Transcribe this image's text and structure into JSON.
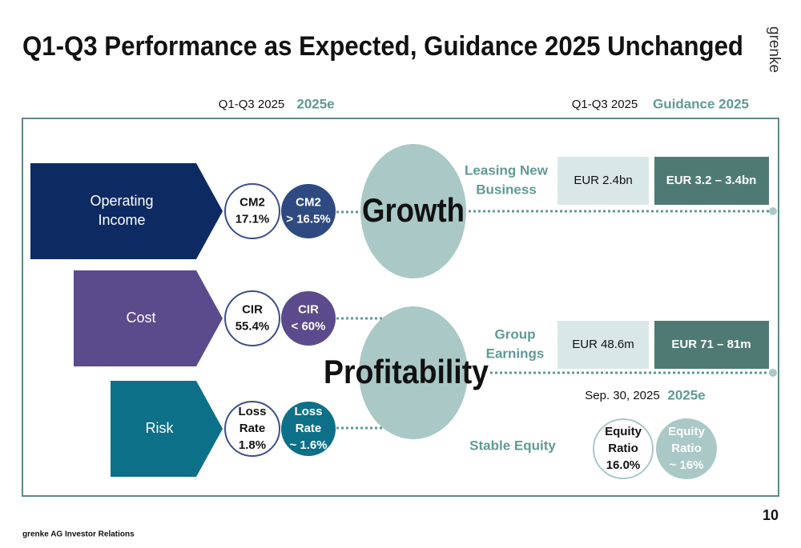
{
  "header": {
    "title": "Q1-Q3 Performance as Expected, Guidance 2025 Unchanged",
    "logo": "grenke"
  },
  "left_columns": {
    "actual": "Q1-Q3 2025",
    "expected": "2025e"
  },
  "right_columns": {
    "actual": "Q1-Q3 2025",
    "guidance": "Guidance 2025"
  },
  "drivers": [
    {
      "label": [
        "Operating",
        "Income"
      ],
      "actual": [
        "CM2",
        "17.1%"
      ],
      "expected": [
        "CM2",
        "> 16.5%"
      ]
    },
    {
      "label": [
        "Cost"
      ],
      "actual": [
        "CIR",
        "55.4%"
      ],
      "expected": [
        "CIR",
        "< 60%"
      ]
    },
    {
      "label": [
        "Risk"
      ],
      "actual": [
        "Loss",
        "Rate",
        "1.8%"
      ],
      "expected": [
        "Loss",
        "Rate",
        "~ 1.6%"
      ]
    }
  ],
  "themes": [
    "Growth",
    "Profitability"
  ],
  "kpis": [
    {
      "label": [
        "Leasing New",
        "Business"
      ],
      "actual": "EUR 2.4bn",
      "guidance": "EUR 3.2 – 3.4bn"
    },
    {
      "label": [
        "Group",
        "Earnings"
      ],
      "actual": "EUR 48.6m",
      "guidance": "EUR 71 – 81m"
    }
  ],
  "equity": {
    "label": "Stable Equity",
    "actual_heading": "Sep. 30, 2025",
    "expected_heading": "2025e",
    "actual": [
      "Equity",
      "Ratio",
      "16.0%"
    ],
    "expected": [
      "Equity",
      "Ratio",
      "~ 16%"
    ]
  },
  "footer": {
    "source": "grenke AG Investor Relations",
    "page": "10"
  }
}
